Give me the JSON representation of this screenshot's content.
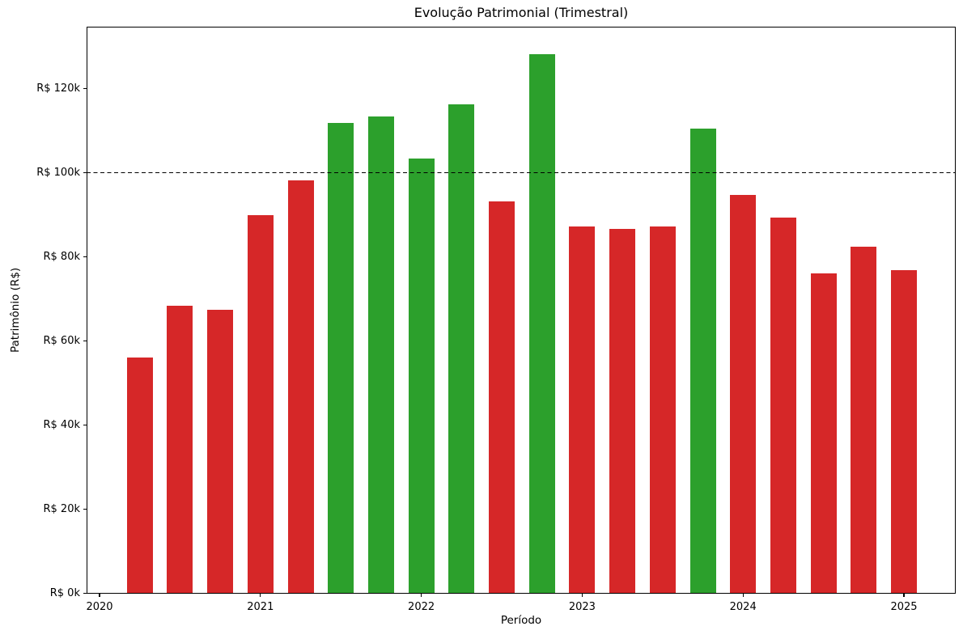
{
  "chart_data": {
    "type": "bar",
    "title": "Evolução Patrimonial (Trimestral)",
    "xlabel": "Período",
    "ylabel": "Patrimônio (R$)",
    "unit": "R$ thousands",
    "categories": [
      "2020-Q2",
      "2020-Q3",
      "2020-Q4",
      "2021-Q1",
      "2021-Q2",
      "2021-Q3",
      "2021-Q4",
      "2022-Q1",
      "2022-Q2",
      "2022-Q3",
      "2022-Q4",
      "2023-Q1",
      "2023-Q2",
      "2023-Q3",
      "2023-Q4",
      "2024-Q1",
      "2024-Q2",
      "2024-Q3",
      "2024-Q4",
      "2025-Q1"
    ],
    "values_k": [
      56.0,
      68.4,
      67.4,
      89.9,
      98.2,
      111.9,
      113.4,
      103.4,
      116.3,
      93.2,
      128.2,
      87.2,
      86.7,
      87.2,
      110.5,
      94.7,
      89.3,
      76.1,
      82.4,
      76.8
    ],
    "threshold_k": 100,
    "reference_line": {
      "value_k": 100,
      "style": "dashed",
      "color": "#000000"
    },
    "colors": {
      "above_threshold": "#2ca02c",
      "below_threshold": "#d62728"
    },
    "x_tick_labels": [
      "2020",
      "2021",
      "2022",
      "2023",
      "2024",
      "2025"
    ],
    "y_tick_labels": [
      "R$ 0k",
      "R$ 20k",
      "R$ 40k",
      "R$ 60k",
      "R$ 80k",
      "R$ 100k",
      "R$ 120k"
    ],
    "y_ticks_k": [
      0,
      20,
      40,
      60,
      80,
      100,
      120
    ],
    "ylim_k": [
      0,
      134.7
    ],
    "grid": false,
    "legend": "none"
  }
}
